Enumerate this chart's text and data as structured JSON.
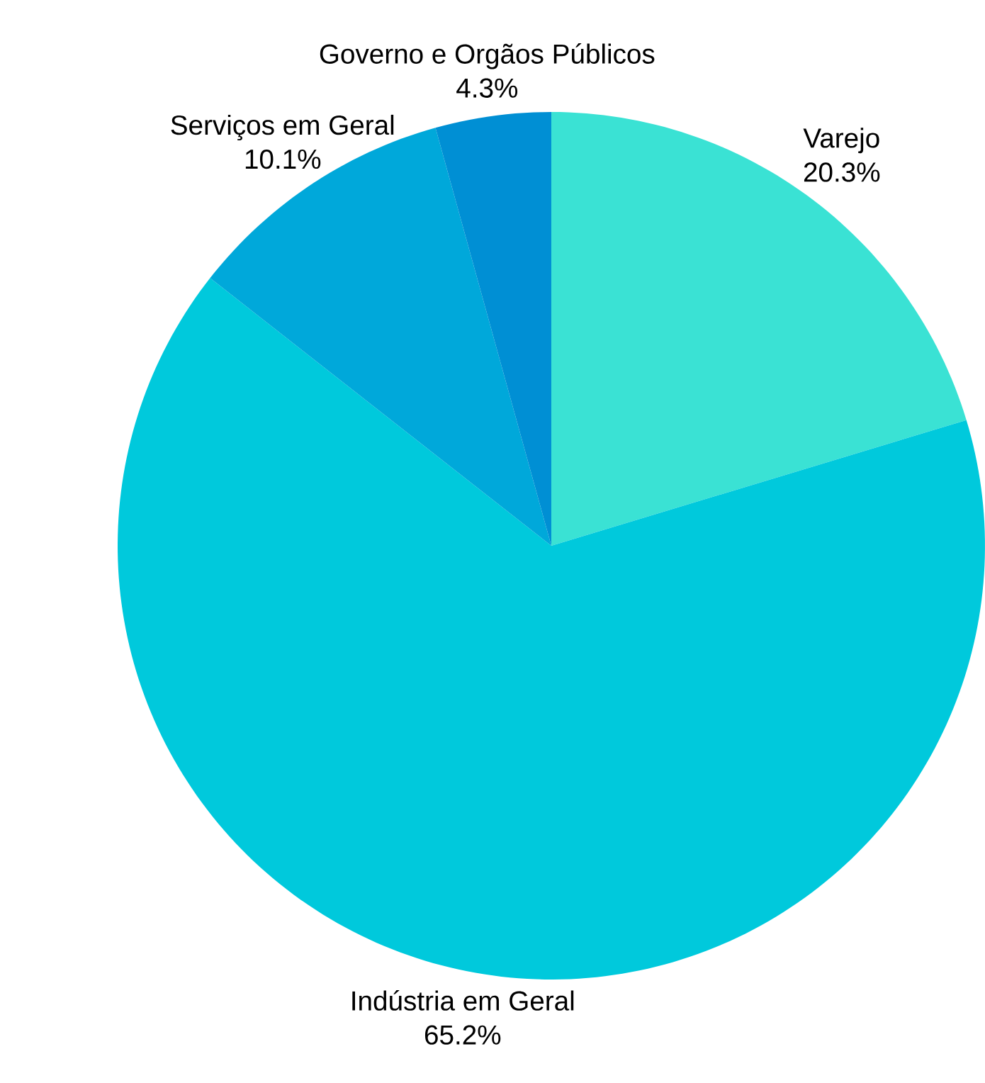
{
  "chart_data": {
    "type": "pie",
    "categories": [
      "Varejo",
      "Indústria em Geral",
      "Serviços em Geral",
      "Governo e Orgãos Públicos"
    ],
    "values": [
      20.3,
      65.2,
      10.1,
      4.3
    ],
    "colors": [
      "#3ae2d4",
      "#00c9dc",
      "#00a8da",
      "#008fd4"
    ],
    "value_labels": [
      "20.3%",
      "65.2%",
      "10.1%",
      "4.3%"
    ]
  }
}
